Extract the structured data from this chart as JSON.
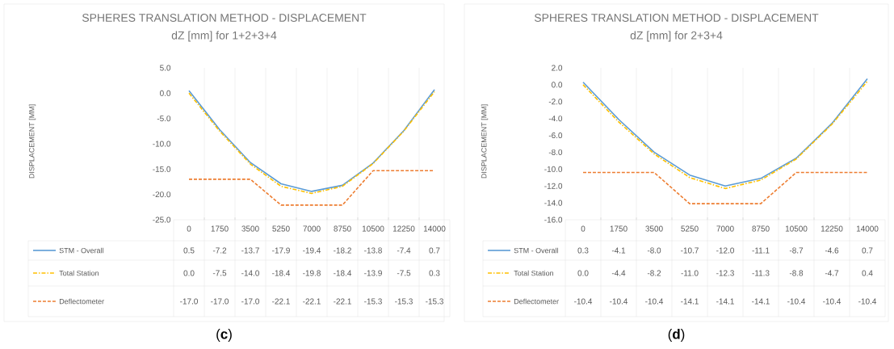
{
  "chart_data": [
    {
      "type": "line",
      "title": "SPHERES TRANSLATION METHOD - DISPLACEMENT",
      "subtitle": "dZ [mm] for 1+2+3+4",
      "ylabel": "DISPLACEMENT [MM]",
      "annotations": [
        "(**c**)"
      ],
      "categories": [
        "0",
        "1750",
        "3500",
        "5250",
        "7000",
        "8750",
        "10500",
        "12250",
        "14000"
      ],
      "ylim": [
        -25,
        5
      ],
      "yticks": [
        {
          "value": -25,
          "label": "-25.0"
        },
        {
          "value": -20,
          "label": "-20.0"
        },
        {
          "value": -15,
          "label": "-15.0"
        },
        {
          "value": -10,
          "label": "-10.0"
        },
        {
          "value": -5,
          "label": "-5.0"
        },
        {
          "value": 0,
          "label": "0.0"
        },
        {
          "value": 5,
          "label": "5.0"
        }
      ],
      "grid": "x",
      "legend": "bottom",
      "marker": "none",
      "series": [
        {
          "name": "STM - Overall",
          "color": "#5b9bd5",
          "line_style": "solid",
          "values": [
            0.5,
            -7.2,
            -13.7,
            -17.9,
            -19.4,
            -18.2,
            -13.8,
            -7.4,
            0.7
          ],
          "value_labels": [
            "0.5",
            "-7.2",
            "-13.7",
            "-17.9",
            "-19.4",
            "-18.2",
            "-13.8",
            "-7.4",
            "0.7"
          ]
        },
        {
          "name": "Total Station",
          "color": "#ffc000",
          "line_style": "dashdot",
          "values": [
            0.0,
            -7.5,
            -14.0,
            -18.4,
            -19.8,
            -18.4,
            -13.9,
            -7.5,
            0.3
          ],
          "value_labels": [
            "0.0",
            "-7.5",
            "-14.0",
            "-18.4",
            "-19.8",
            "-18.4",
            "-13.9",
            "-7.5",
            "0.3"
          ]
        },
        {
          "name": "Deflectometer",
          "color": "#ed7d31",
          "line_style": "dashed",
          "values": [
            -17.0,
            -17.0,
            -17.0,
            -22.1,
            -22.1,
            -22.1,
            -15.3,
            -15.3,
            -15.3
          ],
          "value_labels": [
            "-17.0",
            "-17.0",
            "-17.0",
            "-22.1",
            "-22.1",
            "-22.1",
            "-15.3",
            "-15.3",
            "-15.3"
          ]
        }
      ]
    },
    {
      "type": "line",
      "title": "SPHERES TRANSLATION METHOD - DISPLACEMENT",
      "subtitle": "dZ [mm] for 2+3+4",
      "ylabel": "DISPLACEMENT [MM]",
      "annotations": [
        "(**d**)"
      ],
      "categories": [
        "0",
        "1750",
        "3500",
        "5250",
        "7000",
        "8750",
        "10500",
        "12250",
        "14000"
      ],
      "ylim": [
        -16,
        2
      ],
      "yticks": [
        {
          "value": -16,
          "label": "-16.0"
        },
        {
          "value": -14,
          "label": "-14.0"
        },
        {
          "value": -12,
          "label": "-12.0"
        },
        {
          "value": -10,
          "label": "-10.0"
        },
        {
          "value": -8,
          "label": "-8.0"
        },
        {
          "value": -6,
          "label": "-6.0"
        },
        {
          "value": -4,
          "label": "-4.0"
        },
        {
          "value": -2,
          "label": "-2.0"
        },
        {
          "value": 0,
          "label": "0.0"
        },
        {
          "value": 2,
          "label": "2.0"
        }
      ],
      "grid": "x",
      "legend": "bottom",
      "marker": "none",
      "series": [
        {
          "name": "STM - Overall",
          "color": "#5b9bd5",
          "line_style": "solid",
          "values": [
            0.3,
            -4.1,
            -8.0,
            -10.7,
            -12.0,
            -11.1,
            -8.7,
            -4.6,
            0.7
          ],
          "value_labels": [
            "0.3",
            "-4.1",
            "-8.0",
            "-10.7",
            "-12.0",
            "-11.1",
            "-8.7",
            "-4.6",
            "0.7"
          ]
        },
        {
          "name": "Total Station",
          "color": "#ffc000",
          "line_style": "dashdot",
          "values": [
            0.0,
            -4.4,
            -8.2,
            -11.0,
            -12.3,
            -11.3,
            -8.8,
            -4.7,
            0.4
          ],
          "value_labels": [
            "0.0",
            "-4.4",
            "-8.2",
            "-11.0",
            "-12.3",
            "-11.3",
            "-8.8",
            "-4.7",
            "0.4"
          ]
        },
        {
          "name": "Deflectometer",
          "color": "#ed7d31",
          "line_style": "dashed",
          "values": [
            -10.4,
            -10.4,
            -10.4,
            -14.1,
            -14.1,
            -14.1,
            -10.4,
            -10.4,
            -10.4
          ],
          "value_labels": [
            "-10.4",
            "-10.4",
            "-10.4",
            "-14.1",
            "-14.1",
            "-14.1",
            "-10.4",
            "-10.4",
            "-10.4"
          ]
        }
      ]
    }
  ]
}
